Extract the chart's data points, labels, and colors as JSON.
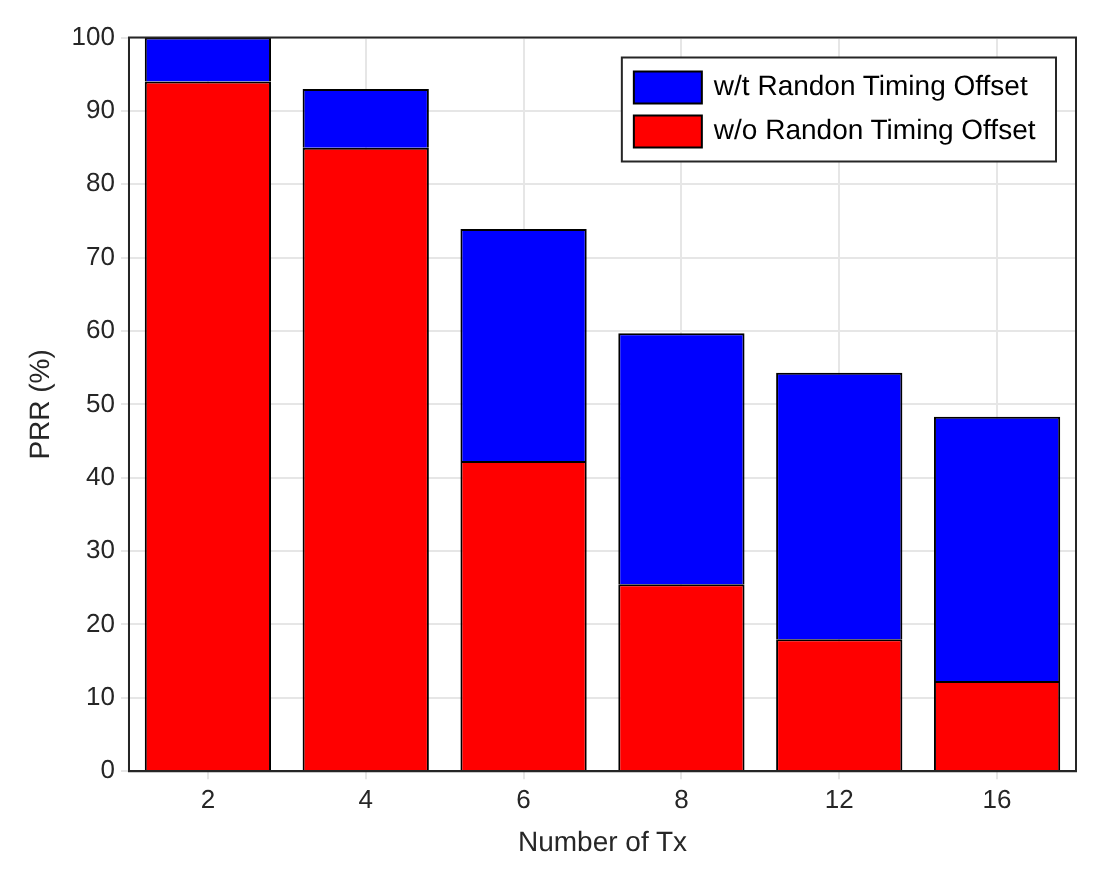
{
  "chart_data": {
    "type": "bar",
    "xlabel": "Number of Tx",
    "ylabel": "PRR (%)",
    "categories": [
      "2",
      "4",
      "6",
      "8",
      "12",
      "16"
    ],
    "stacked": true,
    "series": [
      {
        "name": "w/o Randon Timing Offset",
        "color": "#ff0000",
        "values": [
          94,
          85,
          42.3,
          25.5,
          18,
          12.3
        ]
      },
      {
        "name": "w/t Randon Timing Offset",
        "color": "#0000ff",
        "values": [
          6,
          8,
          31.6,
          34.2,
          36.3,
          36
        ]
      }
    ],
    "ylim": [
      0,
      100
    ],
    "yticks": [
      0,
      10,
      20,
      30,
      40,
      50,
      60,
      70,
      80,
      90,
      100
    ],
    "grid": true,
    "legend": "top right"
  }
}
